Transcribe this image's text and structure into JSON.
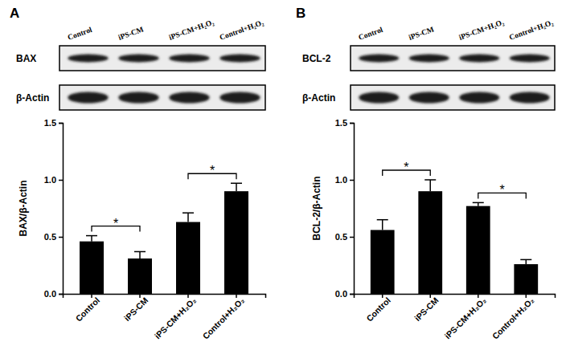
{
  "chart_data": [
    {
      "type": "bar",
      "title": "A",
      "blot": {
        "lanes": [
          "Control",
          "iPS-CM",
          "iPS-CM+H₂O₂",
          "Control+H₂O₂"
        ],
        "rows": [
          "BAX",
          "β-Actin"
        ]
      },
      "categories": [
        "Control",
        "iPS-CM",
        "iPS-CM+H₂O₂",
        "Control+H₂O₂"
      ],
      "values": [
        0.46,
        0.31,
        0.63,
        0.9
      ],
      "error": [
        0.05,
        0.06,
        0.08,
        0.07
      ],
      "color": "#000000",
      "y_label": "BAX/β-Actin",
      "ylim": [
        0,
        1.5
      ],
      "yticks": [
        {
          "value": 0,
          "label": "0.0"
        },
        {
          "value": 0.5,
          "label": "0.5"
        },
        {
          "value": 1,
          "label": "1.0"
        },
        {
          "value": 1.5,
          "label": "1.5"
        }
      ],
      "annotations": [
        {
          "text": "*",
          "between": [
            "Control",
            "iPS-CM"
          ]
        },
        {
          "text": "*",
          "between": [
            "iPS-CM+H₂O₂",
            "Control+H₂O₂"
          ]
        }
      ]
    },
    {
      "type": "bar",
      "title": "B",
      "blot": {
        "lanes": [
          "Control",
          "iPS-CM",
          "iPS-CM+H₂O₂",
          "Control+H₂O₂"
        ],
        "rows": [
          "BCL-2",
          "β-Actin"
        ]
      },
      "categories": [
        "Control",
        "iPS-CM",
        "iPS-CM+H₂O₂",
        "Control+H₂O₂"
      ],
      "values": [
        0.56,
        0.9,
        0.77,
        0.26
      ],
      "error": [
        0.09,
        0.1,
        0.03,
        0.04
      ],
      "color": "#000000",
      "y_label": "BCL-2/β-Actin",
      "ylim": [
        0,
        1.5
      ],
      "yticks": [
        {
          "value": 0,
          "label": "0.0"
        },
        {
          "value": 0.5,
          "label": "0.5"
        },
        {
          "value": 1,
          "label": "1.0"
        },
        {
          "value": 1.5,
          "label": "1.5"
        }
      ],
      "annotations": [
        {
          "text": "*",
          "between": [
            "Control",
            "iPS-CM"
          ]
        },
        {
          "text": "*",
          "between": [
            "iPS-CM+H₂O₂",
            "Control+H₂O₂"
          ]
        }
      ]
    }
  ]
}
